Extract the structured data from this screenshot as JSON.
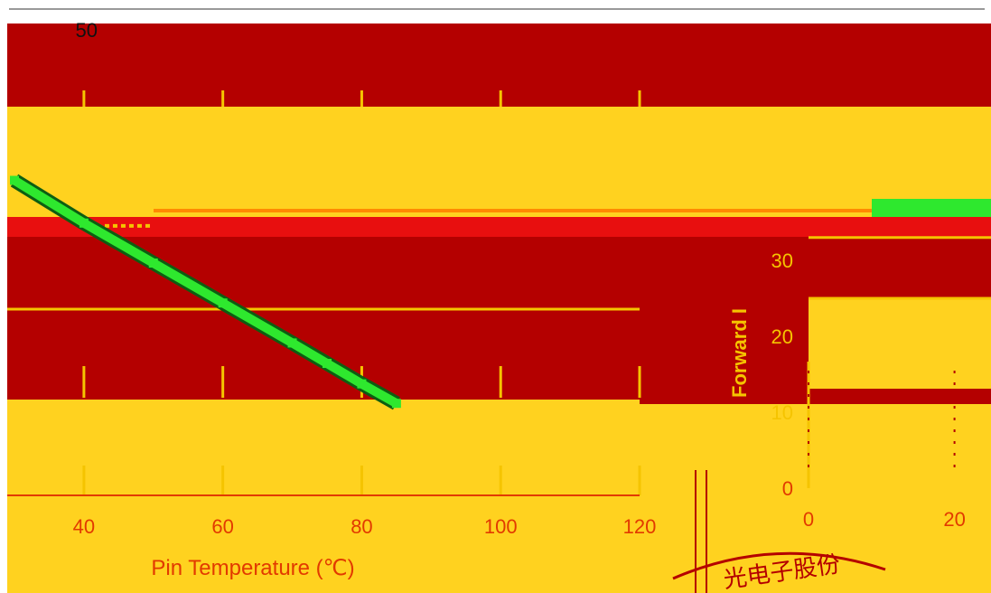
{
  "colors": {
    "panel_bg": "#ffd21f",
    "band_dark": "#b40000",
    "band_red": "#e80f0f",
    "axis_text": "#e23a00",
    "curve": "#2ee82e",
    "curve_outline": "#0d5e12",
    "dotted": "#f5c400"
  },
  "stamp": {
    "text": "光电子股份"
  },
  "chart_data": [
    {
      "type": "line",
      "title": "",
      "xlabel": "Pin Temperature (℃)",
      "ylabel": "",
      "xlim": [
        30,
        120
      ],
      "ylim": [
        0,
        50
      ],
      "x_ticks": [
        "40",
        "60",
        "80",
        "100",
        "120"
      ],
      "y_ticks": [
        "50"
      ],
      "grid": true,
      "series": [
        {
          "x": [
            30,
            40,
            50,
            60,
            70,
            75,
            80,
            85
          ],
          "y": [
            33.9,
            29.3,
            25.0,
            20.7,
            16.4,
            14.2,
            12.0,
            9.9
          ]
        }
      ],
      "annotations": [
        {
          "type": "dotted-hline",
          "x": [
            43,
            50
          ],
          "y": 29.0
        }
      ]
    },
    {
      "type": "line",
      "title": "",
      "xlabel": "",
      "ylabel": "Forward I",
      "xlim": [
        0,
        25
      ],
      "ylim": [
        0,
        50
      ],
      "x_ticks": [
        "0",
        "20"
      ],
      "y_ticks": [
        "0",
        "10",
        "20",
        "30"
      ],
      "grid": true,
      "series": [
        {
          "x": [
            0,
            25
          ],
          "y": [
            33,
            33
          ]
        }
      ]
    }
  ]
}
